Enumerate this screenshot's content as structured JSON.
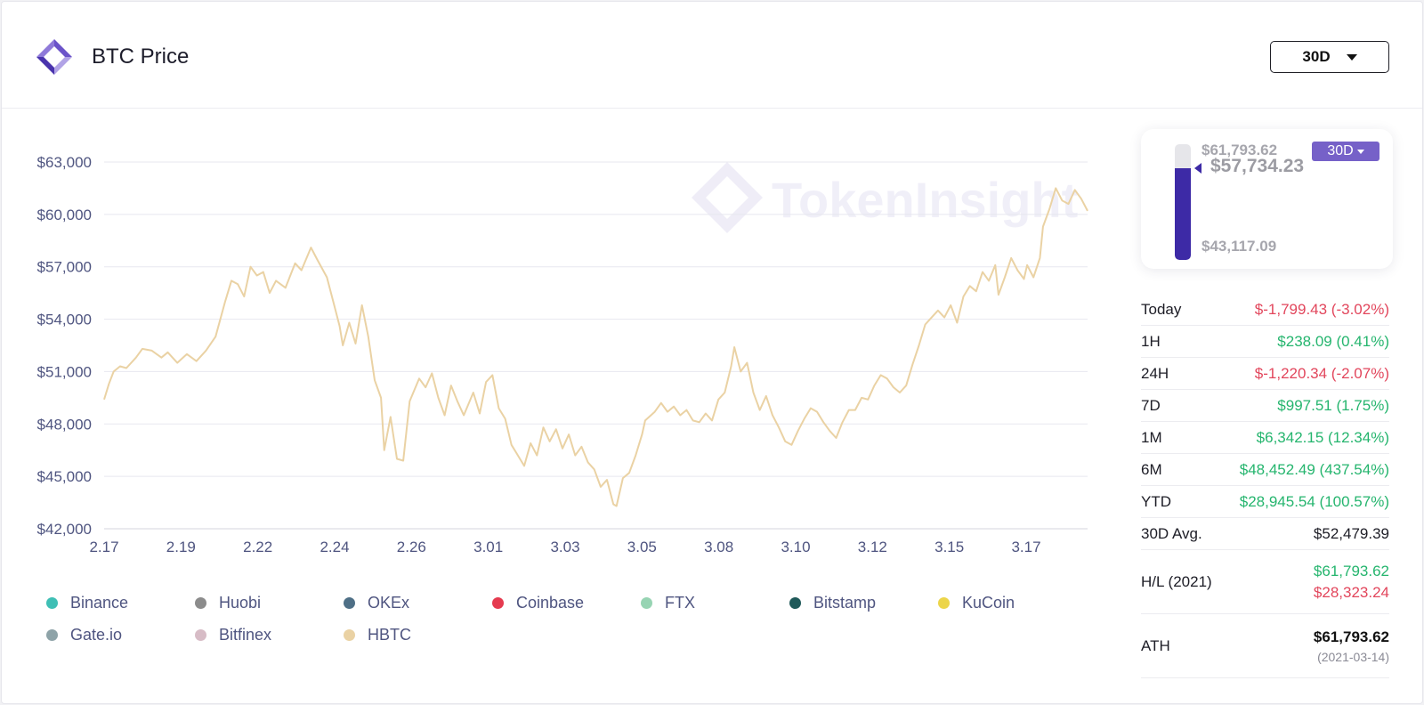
{
  "header": {
    "title": "BTC Price",
    "range": "30D"
  },
  "colors": {
    "accent": "#3d2aa6",
    "pill": "#7661c8",
    "up": "#25b56e",
    "down": "#e2465c",
    "line": "#ead2a4",
    "grid": "#e7e7ef",
    "axis_text": "#4f5580"
  },
  "chart_data": {
    "type": "line",
    "title": "BTC Price",
    "x": [
      "2.17",
      "2.19",
      "2.22",
      "2.24",
      "2.26",
      "3.01",
      "3.03",
      "3.05",
      "3.08",
      "3.10",
      "3.12",
      "3.15",
      "3.17"
    ],
    "ylim": [
      42000,
      63000
    ],
    "y_ticks": [
      "$63,000",
      "$60,000",
      "$57,000",
      "$54,000",
      "$51,000",
      "$48,000",
      "$45,000",
      "$42,000"
    ],
    "y_tick_values": [
      63000,
      60000,
      57000,
      54000,
      51000,
      48000,
      45000,
      42000
    ],
    "x_range_days": [
      0,
      30.9
    ],
    "series": [
      {
        "name": "HBTC",
        "points": [
          [
            0.0,
            49400
          ],
          [
            0.15,
            50300
          ],
          [
            0.3,
            51000
          ],
          [
            0.5,
            51300
          ],
          [
            0.7,
            51200
          ],
          [
            1.0,
            51800
          ],
          [
            1.2,
            52300
          ],
          [
            1.5,
            52200
          ],
          [
            1.8,
            51800
          ],
          [
            2.0,
            52100
          ],
          [
            2.3,
            51500
          ],
          [
            2.6,
            52000
          ],
          [
            2.9,
            51600
          ],
          [
            3.2,
            52200
          ],
          [
            3.5,
            53000
          ],
          [
            3.8,
            55000
          ],
          [
            4.0,
            56200
          ],
          [
            4.2,
            56000
          ],
          [
            4.4,
            55300
          ],
          [
            4.6,
            57000
          ],
          [
            4.8,
            56500
          ],
          [
            5.0,
            56700
          ],
          [
            5.2,
            55500
          ],
          [
            5.4,
            56200
          ],
          [
            5.7,
            55800
          ],
          [
            6.0,
            57200
          ],
          [
            6.2,
            56800
          ],
          [
            6.5,
            58100
          ],
          [
            6.7,
            57400
          ],
          [
            7.0,
            56400
          ],
          [
            7.2,
            55000
          ],
          [
            7.4,
            53600
          ],
          [
            7.5,
            52500
          ],
          [
            7.7,
            53800
          ],
          [
            7.9,
            52600
          ],
          [
            8.1,
            54800
          ],
          [
            8.3,
            53000
          ],
          [
            8.5,
            50500
          ],
          [
            8.7,
            49500
          ],
          [
            8.8,
            46500
          ],
          [
            9.0,
            48400
          ],
          [
            9.2,
            46000
          ],
          [
            9.4,
            45900
          ],
          [
            9.6,
            49300
          ],
          [
            9.9,
            50600
          ],
          [
            10.1,
            50100
          ],
          [
            10.3,
            50900
          ],
          [
            10.5,
            49500
          ],
          [
            10.7,
            48500
          ],
          [
            10.9,
            50200
          ],
          [
            11.1,
            49300
          ],
          [
            11.3,
            48500
          ],
          [
            11.6,
            49800
          ],
          [
            11.8,
            48600
          ],
          [
            12.0,
            50400
          ],
          [
            12.2,
            50800
          ],
          [
            12.4,
            48900
          ],
          [
            12.6,
            48300
          ],
          [
            12.8,
            46800
          ],
          [
            13.0,
            46200
          ],
          [
            13.2,
            45600
          ],
          [
            13.4,
            46900
          ],
          [
            13.6,
            46200
          ],
          [
            13.8,
            47800
          ],
          [
            14.0,
            47000
          ],
          [
            14.2,
            47700
          ],
          [
            14.4,
            46600
          ],
          [
            14.6,
            47400
          ],
          [
            14.8,
            46200
          ],
          [
            15.0,
            46700
          ],
          [
            15.2,
            45800
          ],
          [
            15.4,
            45400
          ],
          [
            15.6,
            44400
          ],
          [
            15.8,
            44800
          ],
          [
            16.0,
            43400
          ],
          [
            16.1,
            43300
          ],
          [
            16.3,
            44900
          ],
          [
            16.5,
            45200
          ],
          [
            16.7,
            46200
          ],
          [
            16.9,
            47400
          ],
          [
            17.0,
            48200
          ],
          [
            17.3,
            48700
          ],
          [
            17.5,
            49200
          ],
          [
            17.7,
            48700
          ],
          [
            17.9,
            49000
          ],
          [
            18.1,
            48500
          ],
          [
            18.3,
            48800
          ],
          [
            18.5,
            48200
          ],
          [
            18.7,
            48100
          ],
          [
            18.9,
            48600
          ],
          [
            19.1,
            48200
          ],
          [
            19.3,
            49400
          ],
          [
            19.5,
            49800
          ],
          [
            19.7,
            51300
          ],
          [
            19.8,
            52400
          ],
          [
            20.0,
            51000
          ],
          [
            20.2,
            51500
          ],
          [
            20.4,
            49800
          ],
          [
            20.6,
            48800
          ],
          [
            20.8,
            49600
          ],
          [
            21.0,
            48500
          ],
          [
            21.2,
            47800
          ],
          [
            21.4,
            47000
          ],
          [
            21.6,
            46800
          ],
          [
            21.8,
            47600
          ],
          [
            22.0,
            48300
          ],
          [
            22.2,
            48900
          ],
          [
            22.4,
            48700
          ],
          [
            22.6,
            48100
          ],
          [
            22.8,
            47600
          ],
          [
            23.0,
            47200
          ],
          [
            23.2,
            48100
          ],
          [
            23.4,
            48800
          ],
          [
            23.6,
            48800
          ],
          [
            23.8,
            49500
          ],
          [
            24.0,
            49400
          ],
          [
            24.2,
            50200
          ],
          [
            24.4,
            50800
          ],
          [
            24.6,
            50600
          ],
          [
            24.8,
            50100
          ],
          [
            25.0,
            49800
          ],
          [
            25.2,
            50200
          ],
          [
            25.4,
            51400
          ],
          [
            25.6,
            52500
          ],
          [
            25.8,
            53700
          ],
          [
            26.0,
            54100
          ],
          [
            26.2,
            54500
          ],
          [
            26.4,
            54100
          ],
          [
            26.6,
            54800
          ],
          [
            26.8,
            53800
          ],
          [
            27.0,
            55300
          ],
          [
            27.2,
            55900
          ],
          [
            27.4,
            55600
          ],
          [
            27.6,
            56700
          ],
          [
            27.8,
            56200
          ],
          [
            28.0,
            57100
          ],
          [
            28.1,
            55400
          ],
          [
            28.3,
            56400
          ],
          [
            28.5,
            57500
          ],
          [
            28.7,
            56800
          ],
          [
            28.9,
            56300
          ],
          [
            29.0,
            57100
          ],
          [
            29.2,
            56400
          ],
          [
            29.4,
            57500
          ],
          [
            29.5,
            59300
          ],
          [
            29.7,
            60300
          ],
          [
            29.9,
            61500
          ],
          [
            30.1,
            60800
          ],
          [
            30.3,
            60600
          ],
          [
            30.5,
            61400
          ],
          [
            30.7,
            60900
          ],
          [
            30.9,
            60200
          ]
        ]
      }
    ],
    "watermark": "TokenInsight"
  },
  "legend": [
    {
      "name": "Binance",
      "color": "#3fbfb5"
    },
    {
      "name": "Huobi",
      "color": "#8c8c8c"
    },
    {
      "name": "OKEx",
      "color": "#4e6f86"
    },
    {
      "name": "Coinbase",
      "color": "#e53a4f"
    },
    {
      "name": "FTX",
      "color": "#97d4b3"
    },
    {
      "name": "Bitstamp",
      "color": "#1f5959"
    },
    {
      "name": "KuCoin",
      "color": "#ecd54a"
    },
    {
      "name": "Gate.io",
      "color": "#8ea3a8"
    },
    {
      "name": "Bitfinex",
      "color": "#d7bcc6"
    },
    {
      "name": "HBTC",
      "color": "#ead2a4"
    }
  ],
  "range_widget": {
    "high": "$61,793.62",
    "current": "$57,734.23",
    "low": "$43,117.09",
    "pill": "30D",
    "position_fraction": 0.79
  },
  "stats": [
    {
      "label": "Today",
      "value": "$-1,799.43 (-3.02%)",
      "trend": "down"
    },
    {
      "label": "1H",
      "value": "$238.09 (0.41%)",
      "trend": "up"
    },
    {
      "label": "24H",
      "value": "$-1,220.34 (-2.07%)",
      "trend": "down"
    },
    {
      "label": "7D",
      "value": "$997.51 (1.75%)",
      "trend": "up"
    },
    {
      "label": "1M",
      "value": "$6,342.15 (12.34%)",
      "trend": "up"
    },
    {
      "label": "6M",
      "value": "$48,452.49 (437.54%)",
      "trend": "up"
    },
    {
      "label": "YTD",
      "value": "$28,945.54 (100.57%)",
      "trend": "up"
    },
    {
      "label": "30D Avg.",
      "value": "$52,479.39",
      "trend": "neutral"
    }
  ],
  "hl": {
    "label": "H/L (2021)",
    "high": "$61,793.62",
    "low": "$28,323.24"
  },
  "ath": {
    "label": "ATH",
    "price": "$61,793.62",
    "date": "(2021-03-14)"
  }
}
